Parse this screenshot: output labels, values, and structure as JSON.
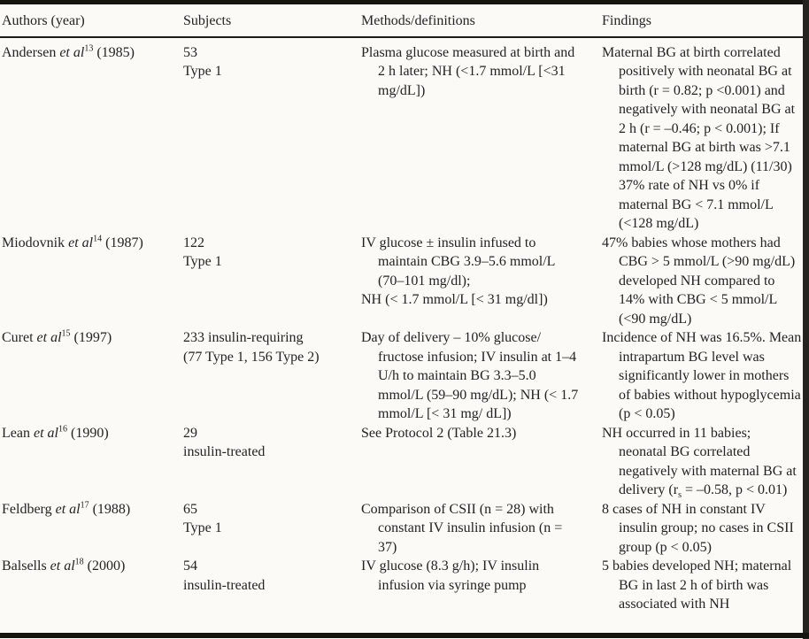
{
  "table": {
    "headers": {
      "authors": "Authors (year)",
      "subjects": "Subjects",
      "methods": "Methods/definitions",
      "findings": "Findings"
    },
    "rows": [
      {
        "author": {
          "name": "Andersen ",
          "etal": "et al",
          "ref": "13",
          "year": " (1985)"
        },
        "subjects": [
          "53",
          "Type 1"
        ],
        "methods": [
          "Plasma glucose measured at birth and 2 h later; NH (<1.7 mmol/L [<31 mg/dL])"
        ],
        "findings": [
          "Maternal BG at birth correlated positively with neonatal BG at birth (r = 0.82; p <0.001) and negatively with neonatal BG at 2 h (r = –0.46; p < 0.001); If maternal BG at birth was >7.1 mmol/L (>128 mg/dL) (11/30) 37% rate of NH vs 0% if maternal BG < 7.1 mmol/L (<128 mg/dL)"
        ]
      },
      {
        "author": {
          "name": "Miodovnik ",
          "etal": "et al",
          "ref": "14",
          "year": " (1987)"
        },
        "subjects": [
          "122",
          "Type 1"
        ],
        "methods": [
          "IV glucose ± insulin infused to maintain CBG 3.9–5.6 mmol/L (70–101 mg/dl);",
          "NH (< 1.7 mmol/L [< 31 mg/dl])"
        ],
        "findings": [
          "47% babies whose mothers had CBG > 5 mmol/L (>90 mg/dL) developed NH compared to 14% with CBG < 5 mmol/L (<90 mg/dL)"
        ]
      },
      {
        "author": {
          "name": "Curet ",
          "etal": "et al",
          "ref": "15",
          "year": " (1997)"
        },
        "subjects": [
          "233 insulin-requiring",
          "(77 Type 1, 156 Type 2)"
        ],
        "methods": [
          "Day of delivery – 10% glucose/ fructose infusion; IV insulin at 1–4 U/h to maintain BG 3.3–5.0 mmol/L (59–90 mg/dL); NH (< 1.7 mmol/L [< 31 mg/ dL])"
        ],
        "findings": [
          "Incidence of NH was 16.5%. Mean intrapartum BG level was significantly lower in mothers of babies without hypoglycemia (p < 0.05)"
        ]
      },
      {
        "author": {
          "name": "Lean ",
          "etal": "et al",
          "ref": "16",
          "year": " (1990)"
        },
        "subjects": [
          "29",
          "insulin-treated"
        ],
        "methods": [
          "See Protocol 2 (Table 21.3)"
        ],
        "findings_pre": "NH occurred in 11 babies; neonatal BG correlated negatively with maternal BG at delivery (r",
        "findings_sub": "s",
        "findings_post": " = –0.58, p < 0.01)"
      },
      {
        "author": {
          "name": "Feldberg ",
          "etal": "et al",
          "ref": "17",
          "year": " (1988)"
        },
        "subjects": [
          "65",
          "Type 1"
        ],
        "methods": [
          "Comparison of CSII (n = 28) with constant IV insulin infusion (n = 37)"
        ],
        "findings": [
          "8 cases of NH in constant IV insulin group; no cases in CSII group (p < 0.05)"
        ]
      },
      {
        "author": {
          "name": "Balsells ",
          "etal": "et al",
          "ref": "18",
          "year": " (2000)"
        },
        "subjects": [
          "54",
          "insulin-treated"
        ],
        "methods": [
          "IV glucose (8.3 g/h); IV insulin infusion via syringe pump"
        ],
        "findings": [
          "5 babies developed NH; maternal BG in last 2 h of birth was associated with NH"
        ]
      }
    ]
  },
  "colors": {
    "rule": "#15140f",
    "background": "#fbfaf7",
    "text": "#232321"
  }
}
